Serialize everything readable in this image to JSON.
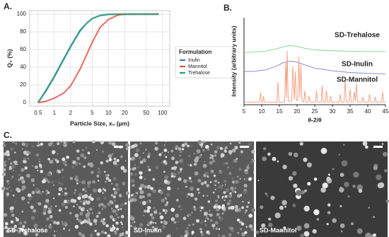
{
  "chart_data": [
    {
      "type": "line",
      "panel_label": "A.",
      "xlabel": "Particle Size, x₀ (µm)",
      "ylabel": "Q₃ (%)",
      "xlog": true,
      "grid": true,
      "legend_title": "Formulation",
      "legend": "right",
      "x": [
        0.5,
        0.7,
        1,
        1.5,
        2,
        3,
        4,
        5,
        7,
        10,
        15,
        20,
        30,
        50,
        85
      ],
      "series": [
        {
          "name": "Inulin",
          "color": "#3b6fc4",
          "values": [
            0,
            13,
            29,
            49,
            63,
            81,
            90,
            95,
            98.5,
            99.7,
            100,
            100,
            100,
            100,
            100
          ]
        },
        {
          "name": "Mannitol",
          "color": "#e8453c",
          "values": [
            0,
            1.5,
            5,
            11,
            19,
            38,
            55,
            68,
            85,
            94,
            99,
            99.8,
            100,
            100,
            100
          ]
        },
        {
          "name": "Trehalose",
          "color": "#1f9e6e",
          "values": [
            0,
            14,
            30,
            50,
            64,
            82,
            90,
            95,
            98.5,
            99.7,
            100,
            100,
            100,
            100,
            100
          ]
        }
      ],
      "xlim": [
        0.35,
        136
      ],
      "xticks": [
        0.5,
        1,
        2,
        5,
        10,
        20,
        50,
        100
      ],
      "ylim": [
        -4,
        104
      ],
      "yticks": [
        0,
        20,
        40,
        60,
        80,
        100
      ]
    },
    {
      "type": "line",
      "panel_label": "B.",
      "xlabel": "θ-2/θ",
      "ylabel": "Intensity (arbitrary units)",
      "xlog": false,
      "grid": false,
      "direct_labels": true,
      "series": [
        {
          "name": "SD-Trehalose",
          "color": "#7fd38a",
          "x": [
            5,
            8,
            11,
            14,
            16,
            18,
            20,
            22,
            25,
            30,
            35,
            40,
            45
          ],
          "values": [
            60,
            60.5,
            61.5,
            64,
            66.5,
            68,
            67,
            65,
            63,
            62,
            61.5,
            61,
            61
          ]
        },
        {
          "name": "SD-Inulin",
          "color": "#7f80d8",
          "x": [
            5,
            8,
            11,
            14,
            16,
            18,
            20,
            22,
            25,
            30,
            35,
            40,
            45
          ],
          "values": [
            38,
            38.5,
            40,
            44,
            48,
            50,
            49,
            46,
            42,
            39,
            37,
            36,
            35.5
          ]
        },
        {
          "name": "SD-Mannitol",
          "color": "#f39a7c",
          "x": [
            5,
            9.4,
            9.7,
            10,
            10.3,
            10.5,
            10.8,
            14.3,
            14.6,
            14.9,
            16.5,
            16.8,
            17,
            17.2,
            17.5,
            18.5,
            18.8,
            19.2,
            19.5,
            19.8,
            20.2,
            20.5,
            20.8,
            21.1,
            21.4,
            21.9,
            22.2,
            22.5,
            23.1,
            23.4,
            23.7,
            25.2,
            25.5,
            25.8,
            26.8,
            27.1,
            27.4,
            28,
            28.3,
            28.6,
            29.2,
            29.5,
            29.8,
            31.9,
            32.2,
            32.5,
            33.3,
            33.6,
            33.9,
            34.7,
            35,
            35.3,
            35.9,
            36.2,
            36.5,
            36.8,
            37.1,
            38.3,
            38.6,
            38.9,
            40.2,
            40.5,
            40.8,
            41.8,
            42.1,
            42.4,
            43.9,
            44.2,
            44.5,
            45
          ],
          "values": [
            3,
            3,
            14,
            3,
            3,
            10,
            3,
            3,
            26,
            3,
            3,
            48,
            8,
            62,
            4,
            4,
            44,
            6,
            38,
            5,
            5,
            55,
            8,
            46,
            4,
            3,
            16,
            3,
            3,
            10,
            3,
            3,
            16,
            3,
            3,
            22,
            3,
            3,
            16,
            3,
            3,
            10,
            3,
            3,
            12,
            3,
            3,
            28,
            3,
            3,
            18,
            3,
            3,
            15,
            4,
            24,
            3,
            3,
            9,
            3,
            3,
            12,
            3,
            3,
            9,
            3,
            3,
            15,
            3,
            3
          ]
        }
      ],
      "xlim": [
        5,
        45
      ],
      "xticks": [
        5,
        10,
        15,
        20,
        25,
        30,
        35,
        40,
        45
      ],
      "ylim": [
        0,
        100
      ]
    }
  ],
  "micrographs": {
    "panel_label": "C.",
    "images": [
      {
        "caption": "SD-Trehalose"
      },
      {
        "caption": "SD-Inulin"
      },
      {
        "caption": "SD-Mannitol"
      }
    ]
  }
}
